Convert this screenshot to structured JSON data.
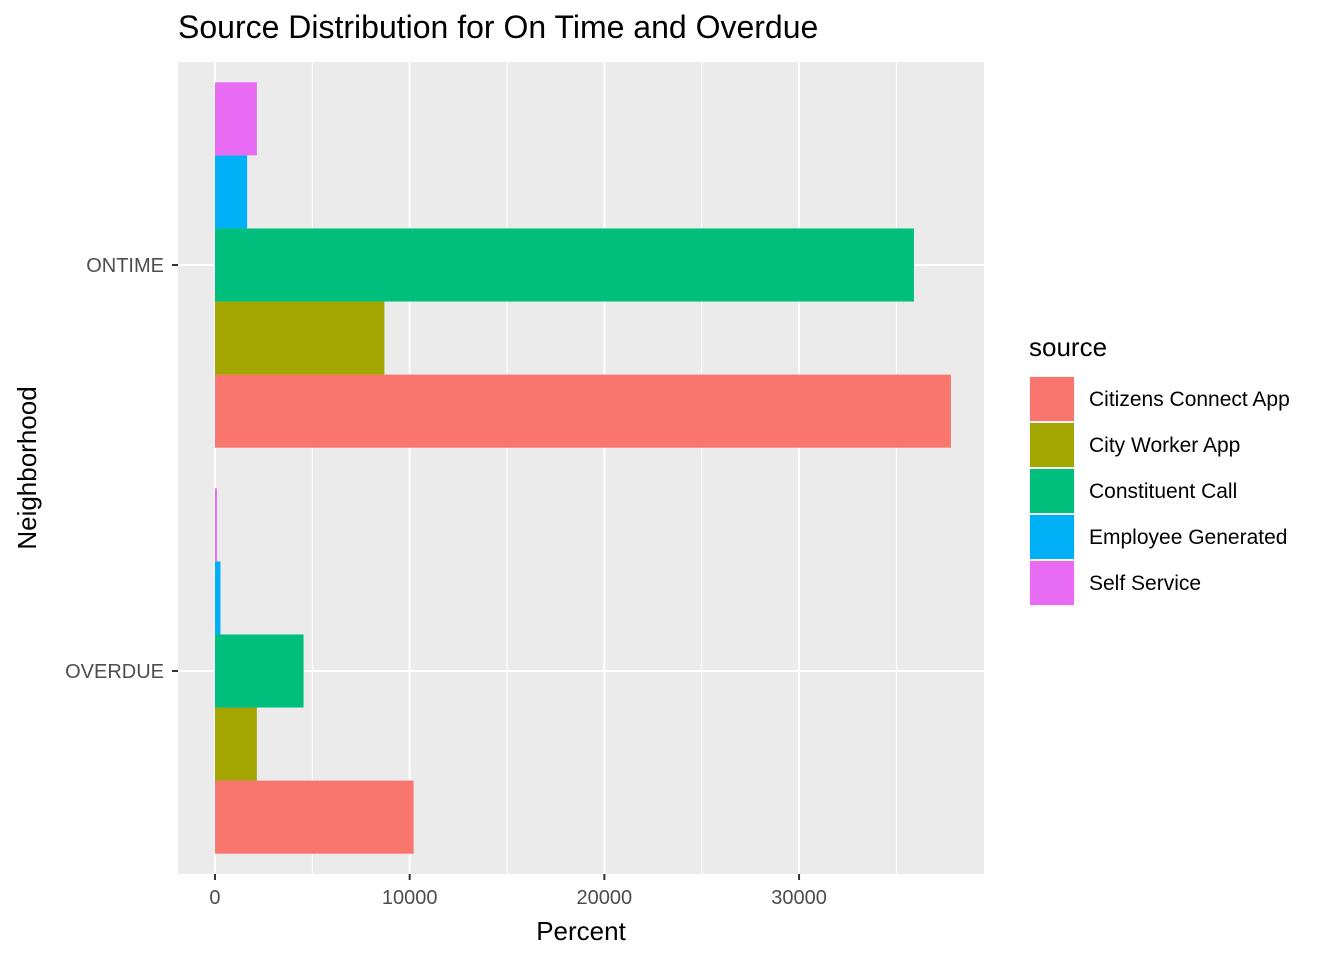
{
  "chart_data": {
    "type": "bar",
    "orientation": "horizontal",
    "title": "Source Distribution for On Time and Overdue",
    "xlabel": "Percent",
    "ylabel": "Neighborhood",
    "categories": [
      "OVERDUE",
      "ONTIME"
    ],
    "xlim": [
      -1900,
      39500
    ],
    "xticks": [
      0,
      10000,
      20000,
      30000
    ],
    "grid": true,
    "legend": {
      "title": "source",
      "placement": "right"
    },
    "series": [
      {
        "name": "Citizens Connect App",
        "color": "#F8766D",
        "values": [
          10200,
          37800
        ]
      },
      {
        "name": "City Worker App",
        "color": "#A3A500",
        "values": [
          2150,
          8700
        ]
      },
      {
        "name": "Constituent Call",
        "color": "#00BF7D",
        "values": [
          4550,
          35900
        ]
      },
      {
        "name": "Employee Generated",
        "color": "#00B0F6",
        "values": [
          280,
          1650
        ]
      },
      {
        "name": "Self Service",
        "color": "#E76BF3",
        "values": [
          100,
          2150
        ]
      }
    ]
  }
}
